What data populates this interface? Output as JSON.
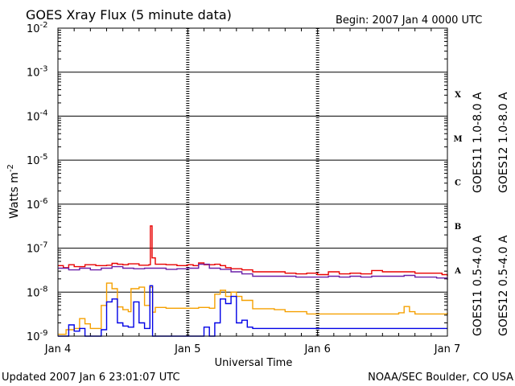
{
  "chart_data": {
    "type": "line",
    "title": "GOES Xray Flux (5 minute data)",
    "begin_label": "Begin:  2007 Jan 4 0000 UTC",
    "xlabel": "Universal Time",
    "ylabel": "Watts m",
    "ylabel_sup": "-2",
    "yscale": "log",
    "ylim": [
      1e-09,
      0.01
    ],
    "xlim_hours": [
      0,
      72
    ],
    "x_tick_labels": [
      {
        "hour": 0,
        "label": "Jan 4"
      },
      {
        "hour": 24,
        "label": "Jan 5"
      },
      {
        "hour": 48,
        "label": "Jan 6"
      },
      {
        "hour": 72,
        "label": "Jan 7"
      }
    ],
    "y_tick_labels": [
      {
        "exp": -2,
        "base": "10",
        "sup": "-2"
      },
      {
        "exp": -3,
        "base": "10",
        "sup": "-3"
      },
      {
        "exp": -4,
        "base": "10",
        "sup": "-4"
      },
      {
        "exp": -5,
        "base": "10",
        "sup": "-5"
      },
      {
        "exp": -6,
        "base": "10",
        "sup": "-6"
      },
      {
        "exp": -7,
        "base": "10",
        "sup": "-7"
      },
      {
        "exp": -8,
        "base": "10",
        "sup": "-8"
      },
      {
        "exp": -9,
        "base": "10",
        "sup": "-9"
      }
    ],
    "flare_classes": [
      {
        "label": "X",
        "exp": -3.5
      },
      {
        "label": "M",
        "exp": -4.5
      },
      {
        "label": "C",
        "exp": -5.5
      },
      {
        "label": "B",
        "exp": -6.5
      },
      {
        "label": "A",
        "exp": -7.5
      }
    ],
    "legend_upper": [
      {
        "name": "GOES11 1.0-8.0 A",
        "color": "#6a1fa8"
      },
      {
        "name": "GOES12 1.0-8.0 A",
        "color": "#e80000"
      }
    ],
    "legend_lower": [
      {
        "name": "GOES11 0.5-4.0 A",
        "color": "#f5a000"
      },
      {
        "name": "GOES12 0.5-4.0 A",
        "color": "#0000e6"
      }
    ],
    "series": [
      {
        "name": "GOES12 1.0-8.0 A",
        "color": "#e80000",
        "points": [
          [
            0,
            4e-08
          ],
          [
            1,
            3.6e-08
          ],
          [
            2,
            4.2e-08
          ],
          [
            3,
            3.8e-08
          ],
          [
            5,
            4.2e-08
          ],
          [
            7,
            4e-08
          ],
          [
            9,
            4.1e-08
          ],
          [
            10,
            4.5e-08
          ],
          [
            11,
            4.3e-08
          ],
          [
            12,
            4.2e-08
          ],
          [
            13,
            4.4e-08
          ],
          [
            15,
            4.1e-08
          ],
          [
            16.8,
            4.2e-08
          ],
          [
            17.1,
            3.2e-07
          ],
          [
            17.4,
            6e-08
          ],
          [
            18,
            4.3e-08
          ],
          [
            20,
            4.2e-08
          ],
          [
            22,
            4e-08
          ],
          [
            24,
            4.2e-08
          ],
          [
            25,
            4e-08
          ],
          [
            26,
            4.6e-08
          ],
          [
            27,
            4.2e-08
          ],
          [
            29,
            4.3e-08
          ],
          [
            30,
            4e-08
          ],
          [
            31,
            3.6e-08
          ],
          [
            32,
            3.4e-08
          ],
          [
            34,
            3.2e-08
          ],
          [
            36,
            2.9e-08
          ],
          [
            38,
            2.9e-08
          ],
          [
            40,
            2.9e-08
          ],
          [
            42,
            2.7e-08
          ],
          [
            44,
            2.6e-08
          ],
          [
            46,
            2.7e-08
          ],
          [
            48,
            2.5e-08
          ],
          [
            50,
            2.9e-08
          ],
          [
            52,
            2.6e-08
          ],
          [
            54,
            2.7e-08
          ],
          [
            56,
            2.6e-08
          ],
          [
            58,
            3.1e-08
          ],
          [
            60,
            2.9e-08
          ],
          [
            62,
            2.9e-08
          ],
          [
            64,
            2.9e-08
          ],
          [
            66,
            2.7e-08
          ],
          [
            68,
            2.7e-08
          ],
          [
            70,
            2.7e-08
          ],
          [
            71,
            2.5e-08
          ],
          [
            72,
            2.3e-08
          ]
        ]
      },
      {
        "name": "GOES11 1.0-8.0 A",
        "color": "#6a1fa8",
        "points": [
          [
            0,
            3.5e-08
          ],
          [
            2,
            3.2e-08
          ],
          [
            4,
            3.5e-08
          ],
          [
            6,
            3.2e-08
          ],
          [
            8,
            3.5e-08
          ],
          [
            10,
            3.8e-08
          ],
          [
            12,
            3.5e-08
          ],
          [
            14,
            3.4e-08
          ],
          [
            16,
            3.5e-08
          ],
          [
            18,
            3.5e-08
          ],
          [
            20,
            3.3e-08
          ],
          [
            22,
            3.4e-08
          ],
          [
            24,
            3.5e-08
          ],
          [
            26,
            4.3e-08
          ],
          [
            28,
            3.5e-08
          ],
          [
            30,
            3.3e-08
          ],
          [
            32,
            2.9e-08
          ],
          [
            34,
            2.6e-08
          ],
          [
            36,
            2.3e-08
          ],
          [
            38,
            2.3e-08
          ],
          [
            40,
            2.3e-08
          ],
          [
            42,
            2.3e-08
          ],
          [
            44,
            2.2e-08
          ],
          [
            46,
            2.2e-08
          ],
          [
            48,
            2.2e-08
          ],
          [
            50,
            2.3e-08
          ],
          [
            52,
            2.2e-08
          ],
          [
            54,
            2.3e-08
          ],
          [
            56,
            2.2e-08
          ],
          [
            58,
            2.3e-08
          ],
          [
            60,
            2.3e-08
          ],
          [
            62,
            2.3e-08
          ],
          [
            64,
            2.4e-08
          ],
          [
            66,
            2.2e-08
          ],
          [
            68,
            2.2e-08
          ],
          [
            70,
            2.1e-08
          ],
          [
            72,
            1.9e-08
          ]
        ]
      },
      {
        "name": "GOES11 0.5-4.0 A",
        "color": "#f5a000",
        "points": [
          [
            0,
            1.1e-09
          ],
          [
            1.5,
            1.4e-09
          ],
          [
            3,
            1.5e-09
          ],
          [
            4,
            2.5e-09
          ],
          [
            5,
            1.9e-09
          ],
          [
            6,
            1.5e-09
          ],
          [
            8,
            5e-09
          ],
          [
            9,
            1.6e-08
          ],
          [
            10,
            1.2e-08
          ],
          [
            11,
            4.6e-09
          ],
          [
            12,
            4e-09
          ],
          [
            13,
            3.6e-09
          ],
          [
            13.5,
            1.2e-08
          ],
          [
            15,
            1.3e-08
          ],
          [
            16,
            5e-09
          ],
          [
            17,
            1.3e-08
          ],
          [
            17.5,
            3.5e-09
          ],
          [
            18,
            4.5e-09
          ],
          [
            20,
            4.3e-09
          ],
          [
            22,
            4.3e-09
          ],
          [
            24,
            4.3e-09
          ],
          [
            26,
            4.5e-09
          ],
          [
            28,
            4.3e-09
          ],
          [
            29,
            9e-09
          ],
          [
            30,
            1.1e-08
          ],
          [
            31,
            8e-09
          ],
          [
            32,
            1e-08
          ],
          [
            33,
            8e-09
          ],
          [
            34,
            6.5e-09
          ],
          [
            36,
            4.2e-09
          ],
          [
            38,
            4.2e-09
          ],
          [
            40,
            4e-09
          ],
          [
            42,
            3.6e-09
          ],
          [
            44,
            3.6e-09
          ],
          [
            46,
            3.2e-09
          ],
          [
            48,
            3.2e-09
          ],
          [
            52,
            3.2e-09
          ],
          [
            56,
            3.2e-09
          ],
          [
            60,
            3.2e-09
          ],
          [
            63,
            3.4e-09
          ],
          [
            64,
            4.7e-09
          ],
          [
            65,
            3.6e-09
          ],
          [
            66,
            3.2e-09
          ],
          [
            70,
            3.2e-09
          ],
          [
            72,
            3.4e-09
          ]
        ]
      },
      {
        "name": "GOES12 0.5-4.0 A",
        "color": "#0000e6",
        "points": [
          [
            0,
            1e-09
          ],
          [
            1,
            1e-09
          ],
          [
            2,
            1.8e-09
          ],
          [
            3,
            1.3e-09
          ],
          [
            4,
            1.5e-09
          ],
          [
            5,
            1e-09
          ],
          [
            6,
            1e-09
          ],
          [
            8,
            1.4e-09
          ],
          [
            9,
            6e-09
          ],
          [
            10,
            7e-09
          ],
          [
            11,
            2e-09
          ],
          [
            12,
            1.7e-09
          ],
          [
            13,
            1.6e-09
          ],
          [
            14,
            6e-09
          ],
          [
            15,
            2e-09
          ],
          [
            16,
            1.5e-09
          ],
          [
            17,
            1.4e-08
          ],
          [
            17.5,
            1e-09
          ],
          [
            20,
            1e-09
          ],
          [
            22,
            1e-09
          ],
          [
            24,
            1e-09
          ],
          [
            26,
            1e-09
          ],
          [
            27,
            1.6e-09
          ],
          [
            28,
            1e-09
          ],
          [
            29,
            2e-09
          ],
          [
            30,
            7e-09
          ],
          [
            31,
            5.5e-09
          ],
          [
            32,
            8e-09
          ],
          [
            33,
            2e-09
          ],
          [
            34,
            2.3e-09
          ],
          [
            35,
            1.6e-09
          ],
          [
            36,
            1.5e-09
          ],
          [
            38,
            1.5e-09
          ],
          [
            42,
            1.5e-09
          ],
          [
            46,
            1.5e-09
          ],
          [
            50,
            1.5e-09
          ],
          [
            54,
            1.5e-09
          ],
          [
            58,
            1.5e-09
          ],
          [
            62,
            1.5e-09
          ],
          [
            66,
            1.5e-09
          ],
          [
            70,
            1.5e-09
          ],
          [
            72,
            1.5e-09
          ]
        ]
      }
    ],
    "grid": true,
    "legend_position": "right-vertical"
  },
  "footer": {
    "updated": "Updated 2007 Jan  6 23:01:07 UTC",
    "source": "NOAA/SEC Boulder, CO USA"
  }
}
